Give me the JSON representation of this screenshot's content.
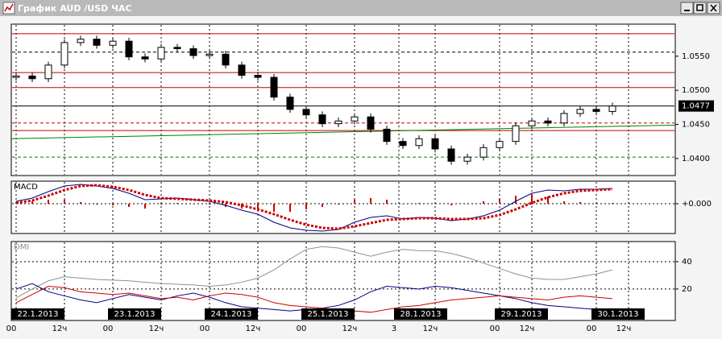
{
  "window": {
    "title": "График AUD /USD  ЧАС"
  },
  "chart_data": [
    {
      "type": "candlestick",
      "x": [
        0,
        4,
        8,
        12,
        16,
        20,
        24,
        28,
        32,
        36,
        40,
        44,
        48,
        52,
        56,
        60,
        64,
        68,
        72,
        76,
        80,
        84,
        88,
        92,
        96,
        100,
        104,
        108,
        112,
        116,
        120,
        124,
        128,
        132,
        136,
        140,
        144,
        148
      ],
      "open": [
        1.0519,
        1.0521,
        1.0517,
        1.0537,
        1.057,
        1.0575,
        1.0566,
        1.0572,
        1.0549,
        1.0546,
        1.0563,
        1.0561,
        1.0551,
        1.0553,
        1.0537,
        1.0522,
        1.0519,
        1.049,
        1.0472,
        1.0464,
        1.0451,
        1.0455,
        1.0461,
        1.0443,
        1.0425,
        1.0419,
        1.0429,
        1.0414,
        1.0396,
        1.0402,
        1.0416,
        1.0425,
        1.0448,
        1.0455,
        1.0452,
        1.0466,
        1.0472,
        1.0469
      ],
      "high": [
        1.0526,
        1.0526,
        1.0542,
        1.0575,
        1.058,
        1.058,
        1.0577,
        1.0577,
        1.0554,
        1.0568,
        1.0568,
        1.0566,
        1.0558,
        1.0558,
        1.0542,
        1.0527,
        1.0524,
        1.0495,
        1.0477,
        1.0469,
        1.046,
        1.0466,
        1.0466,
        1.0448,
        1.043,
        1.0434,
        1.0434,
        1.0419,
        1.0407,
        1.0421,
        1.043,
        1.0453,
        1.046,
        1.046,
        1.0471,
        1.0477,
        1.0477,
        1.0482
      ],
      "low": [
        1.0514,
        1.0512,
        1.0512,
        1.0532,
        1.0565,
        1.0561,
        1.0561,
        1.0544,
        1.0541,
        1.0541,
        1.0556,
        1.0546,
        1.0546,
        1.0532,
        1.0517,
        1.0514,
        1.0485,
        1.0467,
        1.0459,
        1.0446,
        1.0446,
        1.045,
        1.0438,
        1.042,
        1.0414,
        1.0414,
        1.0409,
        1.0391,
        1.0391,
        1.0397,
        1.0411,
        1.042,
        1.0443,
        1.0447,
        1.0447,
        1.0461,
        1.0464,
        1.0464
      ],
      "close": [
        1.0521,
        1.0517,
        1.0537,
        1.057,
        1.0575,
        1.0566,
        1.0572,
        1.0549,
        1.0546,
        1.0563,
        1.0561,
        1.0551,
        1.0553,
        1.0537,
        1.0522,
        1.0519,
        1.049,
        1.0472,
        1.0464,
        1.0451,
        1.0455,
        1.0461,
        1.0443,
        1.0425,
        1.0419,
        1.0429,
        1.0414,
        1.0396,
        1.0402,
        1.0416,
        1.0425,
        1.0448,
        1.0455,
        1.0452,
        1.0466,
        1.0472,
        1.0469,
        1.0477
      ],
      "xlim": [
        -1.2,
        163.6
      ],
      "ylim": [
        1.0375,
        1.0597
      ],
      "yticks": [
        {
          "value": 1.055,
          "label": "1.0550"
        },
        {
          "value": 1.05,
          "label": "1.0500"
        },
        {
          "value": 1.045,
          "label": "1.0450"
        },
        {
          "value": 1.04,
          "label": "1.0400"
        }
      ],
      "levels": [
        {
          "value": 1.0583,
          "color": "#c00000",
          "style": "solid"
        },
        {
          "value": 1.0556,
          "color": "#000000",
          "style": "dashed"
        },
        {
          "value": 1.0526,
          "color": "#c00000",
          "style": "solid"
        },
        {
          "value": 1.0504,
          "color": "#c00000",
          "style": "solid"
        },
        {
          "value": 1.0452,
          "color": "#c00000",
          "style": "dashed"
        },
        {
          "value": 1.0441,
          "color": "#c00000",
          "style": "solid"
        },
        {
          "value": 1.0402,
          "color": "#008000",
          "style": "dashed"
        }
      ],
      "trendline": {
        "x": [
          -1.2,
          163.6
        ],
        "values": [
          1.0429,
          1.0449
        ],
        "color": "#008000"
      },
      "last_price": {
        "value": 1.0477,
        "label": "1.0477"
      }
    },
    {
      "type": "line",
      "title": "MACD",
      "x": [
        0,
        4,
        8,
        12,
        16,
        20,
        24,
        28,
        32,
        36,
        40,
        44,
        48,
        52,
        56,
        60,
        64,
        68,
        72,
        76,
        80,
        84,
        88,
        92,
        96,
        100,
        104,
        108,
        112,
        116,
        120,
        124,
        128,
        132,
        136,
        140,
        144,
        148
      ],
      "xlim": [
        -1.2,
        163.6
      ],
      "ylim": [
        -0.00185,
        0.0014
      ],
      "yticks": [
        {
          "value": 0,
          "label": "+0.000"
        }
      ],
      "grid": true,
      "series": [
        {
          "type": "bar",
          "color": "#cc0000",
          "values": [
            0.0001,
            0.00015,
            0.00025,
            0.00025,
            0.0001,
            -5e-05,
            -0.0001,
            -0.0002,
            -0.0003,
            -5e-05,
            5e-05,
            0,
            -5e-05,
            -0.0002,
            -0.0003,
            -0.0003,
            -0.0005,
            -0.0005,
            -0.00035,
            -0.0002,
            -5e-05,
            0.00025,
            0.00035,
            0.00025,
            0,
            5e-05,
            0,
            -0.0001,
            0,
            0.00015,
            0.0003,
            0.0005,
            0.0006,
            0.00045,
            0.00015,
            0.0001,
            5e-05,
            5e-05
          ]
        },
        {
          "type": "line",
          "color": "#000080",
          "style": "solid",
          "values": [
            0.00015,
            0.00035,
            0.00075,
            0.0011,
            0.0012,
            0.0011,
            0.00095,
            0.00065,
            0.00025,
            0.0003,
            0.00035,
            0.00025,
            0.00015,
            -0.0001,
            -0.0004,
            -0.00065,
            -0.00115,
            -0.0015,
            -0.00165,
            -0.0017,
            -0.0016,
            -0.00115,
            -0.00085,
            -0.00075,
            -0.00095,
            -0.00085,
            -0.0009,
            -0.00105,
            -0.00095,
            -0.00075,
            -0.0004,
            0.00015,
            0.00065,
            0.00085,
            0.0008,
            0.0009,
            0.0009,
            0.00095
          ]
        },
        {
          "type": "line",
          "color": "#cc0000",
          "style": "dotted",
          "values": [
            5e-05,
            0.0002,
            0.0005,
            0.00085,
            0.0011,
            0.00115,
            0.00105,
            0.00085,
            0.00055,
            0.00035,
            0.0003,
            0.00025,
            0.0002,
            0.0001,
            -0.0001,
            -0.00035,
            -0.00065,
            -0.001,
            -0.0013,
            -0.0015,
            -0.00155,
            -0.0014,
            -0.0012,
            -0.001,
            -0.00095,
            -0.0009,
            -0.0009,
            -0.00095,
            -0.00095,
            -0.0009,
            -0.0007,
            -0.00035,
            5e-05,
            0.0004,
            0.00065,
            0.0008,
            0.00085,
            0.0009
          ]
        }
      ]
    },
    {
      "type": "line",
      "title": "DMI",
      "x": [
        0,
        4,
        8,
        12,
        16,
        20,
        24,
        28,
        32,
        36,
        40,
        44,
        48,
        52,
        56,
        60,
        64,
        68,
        72,
        76,
        80,
        84,
        88,
        92,
        96,
        100,
        104,
        108,
        112,
        116,
        120,
        124,
        128,
        132,
        136,
        140,
        144,
        148
      ],
      "xlim": [
        -1.2,
        163.6
      ],
      "ylim": [
        -3,
        54.7
      ],
      "yticks": [
        40,
        20
      ],
      "grid": true,
      "series": [
        {
          "type": "line",
          "color": "#909090",
          "style": "solid",
          "values": [
            13.5,
            20,
            26,
            29,
            28,
            27,
            26.5,
            26,
            25,
            24,
            23.5,
            23,
            22,
            23,
            25,
            28,
            34,
            42,
            49,
            51,
            50,
            47,
            44,
            47,
            49,
            48,
            48,
            46,
            43,
            39,
            35,
            31,
            28,
            27,
            27,
            29,
            31,
            34
          ]
        },
        {
          "type": "line",
          "color": "#000080",
          "style": "solid",
          "values": [
            20,
            24,
            18,
            15,
            12,
            10,
            13,
            16,
            14,
            12,
            15,
            17,
            14,
            10,
            7,
            6,
            5,
            4,
            5,
            6,
            8,
            12,
            18,
            22,
            21,
            20,
            22,
            21,
            19,
            17,
            15,
            13,
            10,
            8,
            7,
            6,
            5,
            4
          ]
        },
        {
          "type": "line",
          "color": "#cc0000",
          "style": "solid",
          "values": [
            10,
            16,
            22,
            21,
            18,
            17,
            16,
            17,
            15,
            13,
            14,
            12,
            15,
            17,
            16,
            14,
            10,
            8,
            7,
            6,
            5,
            4,
            3,
            5,
            7,
            8,
            10,
            12,
            13,
            14,
            15,
            14,
            13,
            12,
            14,
            15,
            14,
            13
          ]
        }
      ],
      "xticks": [
        {
          "value": 0,
          "label": "00"
        },
        {
          "value": 12,
          "label": "12ч"
        },
        {
          "value": 24,
          "label": "00"
        },
        {
          "value": 36,
          "label": "12ч"
        },
        {
          "value": 48,
          "label": "00"
        },
        {
          "value": 60,
          "label": "12ч"
        },
        {
          "value": 72,
          "label": "00"
        },
        {
          "value": 84,
          "label": "12ч"
        },
        {
          "value": 95,
          "label": "3"
        },
        {
          "value": 104,
          "label": "12ч"
        },
        {
          "value": 120,
          "label": "00"
        },
        {
          "value": 128,
          "label": "12ч"
        },
        {
          "value": 144,
          "label": "00"
        },
        {
          "value": 152,
          "label": "12ч"
        }
      ],
      "date_labels": [
        {
          "value": 0,
          "label": "22.1.2013"
        },
        {
          "value": 24,
          "label": "23.1.2013"
        },
        {
          "value": 48,
          "label": "24.1.2013"
        },
        {
          "value": 72,
          "label": "25.1.2013"
        },
        {
          "value": 95,
          "label": "28.1.2013"
        },
        {
          "value": 120,
          "label": "29.1.2013"
        },
        {
          "value": 144,
          "label": "30.1.2013"
        }
      ]
    }
  ]
}
